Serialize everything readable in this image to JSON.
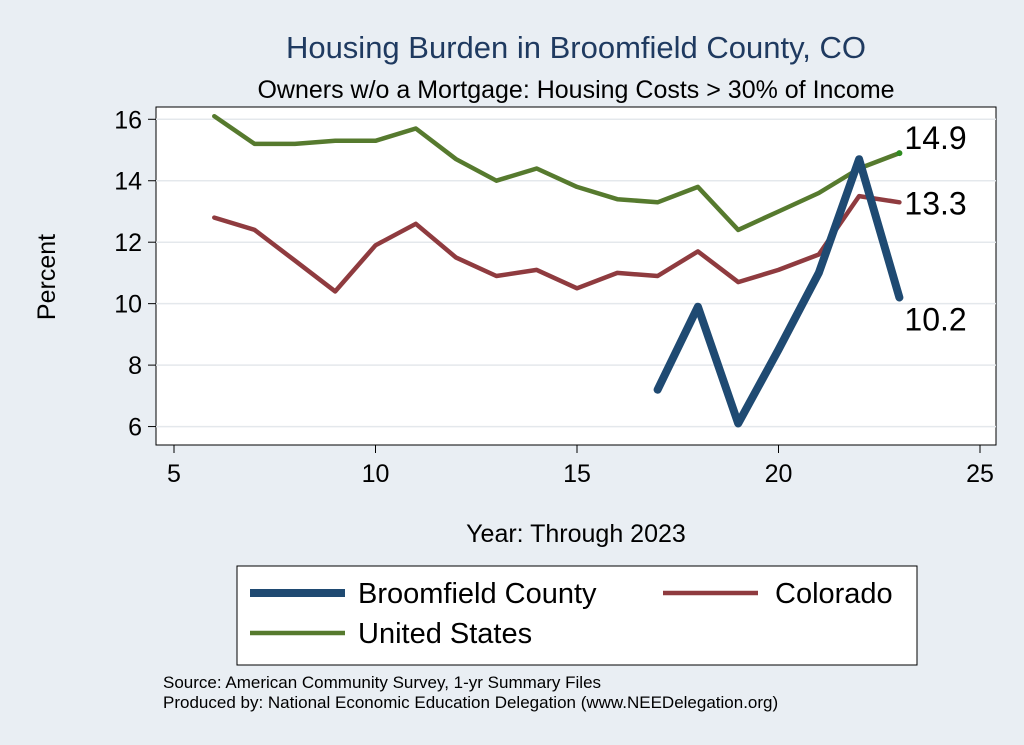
{
  "chart_data": {
    "type": "line",
    "title": "Housing Burden in Broomfield County, CO",
    "subtitle": "Owners w/o a Mortgage: Housing Costs > 30% of Income",
    "xlabel": "Year: Through 2023",
    "ylabel": "Percent",
    "xlim": [
      5,
      25
    ],
    "ylim": [
      5.4,
      16.4
    ],
    "xticks": [
      5,
      10,
      15,
      20,
      25
    ],
    "yticks": [
      6,
      8,
      10,
      12,
      14,
      16
    ],
    "grid": true,
    "legend_position": "bottom",
    "series": [
      {
        "name": "Broomfield County",
        "color": "#1f4a72",
        "x": [
          17,
          18,
          19,
          20,
          21,
          22,
          23
        ],
        "y": [
          7.2,
          9.9,
          6.1,
          8.5,
          11.0,
          14.7,
          10.2
        ],
        "end_label": "10.2"
      },
      {
        "name": "Colorado",
        "color": "#8f3b3f",
        "x": [
          6,
          7,
          8,
          9,
          10,
          11,
          12,
          13,
          14,
          15,
          16,
          17,
          18,
          19,
          20,
          21,
          22,
          23
        ],
        "y": [
          12.8,
          12.4,
          11.4,
          10.4,
          11.9,
          12.6,
          11.5,
          10.9,
          11.1,
          10.5,
          11.0,
          10.9,
          11.7,
          10.7,
          11.1,
          11.6,
          13.5,
          13.3
        ],
        "end_label": "13.3"
      },
      {
        "name": "United States",
        "color": "#567a2e",
        "x": [
          6,
          7,
          8,
          9,
          10,
          11,
          12,
          13,
          14,
          15,
          16,
          17,
          18,
          19,
          20,
          21,
          22,
          23
        ],
        "y": [
          16.1,
          15.2,
          15.2,
          15.3,
          15.3,
          15.7,
          14.7,
          14.0,
          14.4,
          13.8,
          13.4,
          13.3,
          13.8,
          12.4,
          13.0,
          13.6,
          14.4,
          14.9
        ],
        "end_label": "14.9"
      }
    ],
    "notes": [
      "Source: American Community Survey, 1-yr Summary Files",
      "Produced by: National Economic Education Delegation (www.NEEDelegation.org)"
    ]
  }
}
